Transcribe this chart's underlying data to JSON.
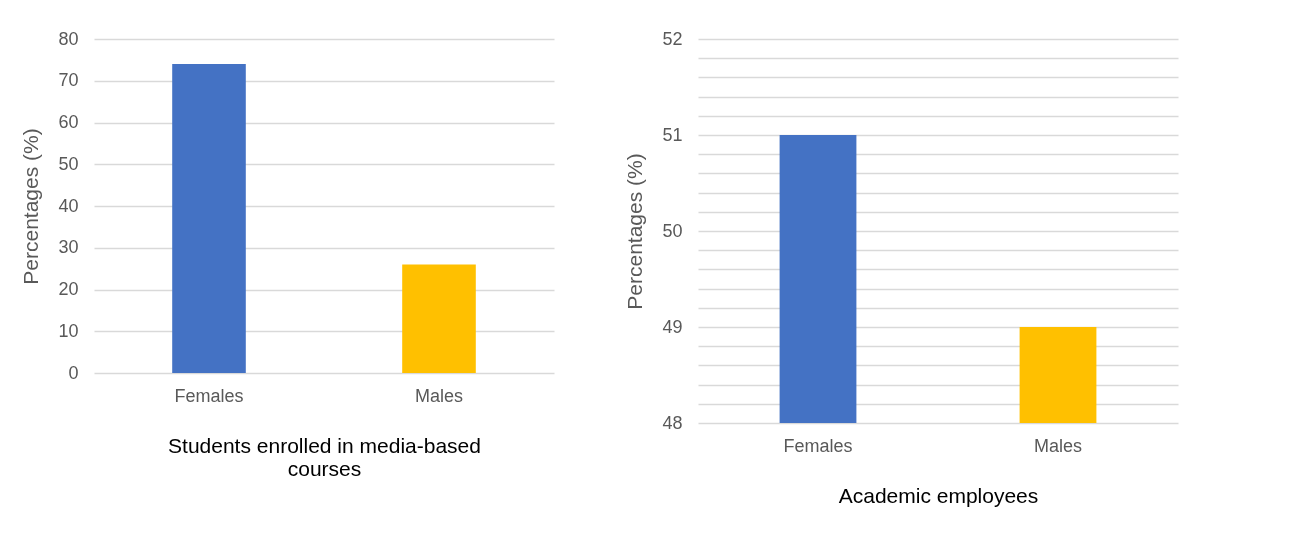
{
  "chart_data": [
    {
      "type": "bar",
      "categories": [
        "Females",
        "Males"
      ],
      "values": [
        74,
        26
      ],
      "colors": [
        "#4472c4",
        "#ffc000"
      ],
      "xlabel": "Students enrolled in media-based courses",
      "ylabel": "Percentages (%)",
      "ylim": [
        0,
        80
      ],
      "yticks": [
        0,
        10,
        20,
        30,
        40,
        50,
        60,
        70,
        80
      ],
      "grid": "y"
    },
    {
      "type": "bar",
      "categories": [
        "Females",
        "Males"
      ],
      "values": [
        51,
        49
      ],
      "colors": [
        "#4472c4",
        "#ffc000"
      ],
      "xlabel": "Academic employees",
      "ylabel": "Percentages (%)",
      "ylim": [
        48,
        52
      ],
      "yticks": [
        48,
        {
          "value": 48.2,
          "label": null
        },
        {
          "value": 48.4,
          "label": null
        },
        {
          "value": 48.6,
          "label": null
        },
        {
          "value": 48.8,
          "label": null
        },
        49,
        {
          "value": 49.2,
          "label": null
        },
        {
          "value": 49.4,
          "label": null
        },
        {
          "value": 49.6,
          "label": null
        },
        {
          "value": 49.8,
          "label": null
        },
        50,
        {
          "value": 50.2,
          "label": null
        },
        {
          "value": 50.4,
          "label": null
        },
        {
          "value": 50.6,
          "label": null
        },
        {
          "value": 50.8,
          "label": null
        },
        51,
        {
          "value": 51.2,
          "label": null
        },
        {
          "value": 51.4,
          "label": null
        },
        {
          "value": 51.6,
          "label": null
        },
        {
          "value": 51.8,
          "label": null
        },
        52
      ],
      "grid": "y"
    }
  ]
}
